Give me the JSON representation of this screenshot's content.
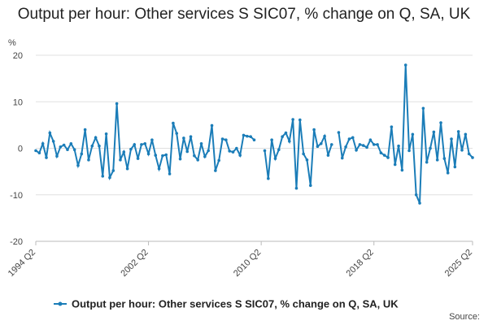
{
  "chart_data": {
    "type": "line",
    "title": "Output per hour: Other services S SIC07, % change on Q, SA, UK",
    "y_label": "%",
    "source": "Source:",
    "categories": [
      "1994 Q2",
      null,
      null,
      null,
      null,
      null,
      null,
      null,
      null,
      null,
      null,
      null,
      null,
      null,
      null,
      null,
      null,
      null,
      null,
      null,
      null,
      null,
      null,
      null,
      null,
      null,
      null,
      null,
      null,
      null,
      null,
      null,
      "2002 Q2",
      null,
      null,
      null,
      null,
      null,
      null,
      null,
      null,
      null,
      null,
      null,
      null,
      null,
      null,
      null,
      null,
      null,
      null,
      null,
      null,
      null,
      null,
      null,
      null,
      null,
      null,
      null,
      null,
      null,
      null,
      null,
      "2010 Q2",
      null,
      null,
      null,
      null,
      null,
      null,
      null,
      null,
      null,
      null,
      null,
      null,
      null,
      null,
      null,
      null,
      null,
      null,
      null,
      null,
      null,
      null,
      null,
      null,
      null,
      null,
      null,
      null,
      null,
      null,
      null,
      "2018 Q2",
      null,
      null,
      null,
      null,
      null,
      null,
      null,
      null,
      null,
      null,
      null,
      null,
      null,
      null,
      null,
      null,
      null,
      null,
      null,
      null,
      null,
      null,
      null,
      null,
      null,
      null,
      null,
      "2025 Q2"
    ],
    "series": [
      {
        "name": "Output per hour: Other services S SIC07, % change on Q, SA, UK",
        "color": "#1b7db8",
        "values": [
          -0.5,
          -1,
          1,
          -2,
          3.3,
          1.5,
          -1.7,
          0.3,
          0.7,
          -0.3,
          1,
          -0.3,
          -3.7,
          -1.2,
          4,
          -2.5,
          0.5,
          2.3,
          0.5,
          -6,
          3.1,
          -6.3,
          -4.8,
          9.6,
          -2.5,
          -0.8,
          -4.4,
          -0.2,
          0.8,
          -2.2,
          0.8,
          1,
          -1.2,
          1.8,
          -1.5,
          -4.4,
          -1.6,
          -1.4,
          -5.5,
          5.4,
          3.2,
          -2.3,
          2.2,
          -0.7,
          2.5,
          -1.6,
          -2.5,
          1,
          -1.8,
          -0.5,
          4.9,
          -4.8,
          -2.6,
          2,
          1.8,
          -0.6,
          -0.8,
          0,
          -1.5,
          2.8,
          2.6,
          2.5,
          1.8,
          null,
          null,
          -0.5,
          -6.5,
          1.8,
          -2.2,
          -0.3,
          2.5,
          3.3,
          1.5,
          6.2,
          -8.6,
          6.1,
          -1.2,
          -2.5,
          -8,
          4,
          0.4,
          1,
          2.6,
          -1.5,
          0.8,
          null,
          3.4,
          -2.1,
          0.3,
          2,
          2.3,
          -0.4,
          0.8,
          0.6,
          0.2,
          1.8,
          0.8,
          0.8,
          -1,
          -1.5,
          -2,
          4.6,
          -3.5,
          0.5,
          -4.7,
          17.9,
          -0.5,
          3,
          -10,
          -11.8,
          8.6,
          -3,
          0,
          3.5,
          -2.5,
          5.5,
          -2.2,
          -5.3,
          2,
          -4,
          3.6,
          -0.4,
          3,
          -1.2,
          -2
        ]
      }
    ],
    "ylim": [
      -20,
      20
    ],
    "yticks": [
      -20,
      -10,
      0,
      10,
      20
    ],
    "grid": true
  }
}
